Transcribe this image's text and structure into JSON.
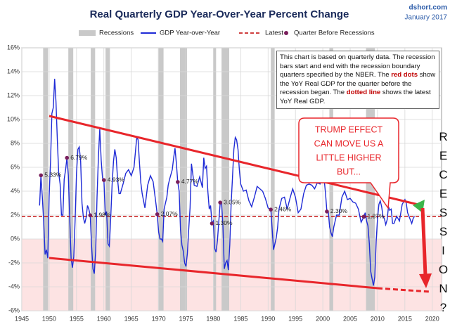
{
  "title": "Real Quarterly GDP Year-Over-Year Percent Change",
  "source": "dshort.com",
  "date": "January 2017",
  "info_box": {
    "parts": [
      "This chart is based on quarterly data. The recession bars start and end with the recession boundary quarters specified by the NBER. The ",
      "red dots",
      " show the YoY Real GDP for the quarter before the recession began. The ",
      "dotted line",
      " shows the latest YoY Real GDP."
    ]
  },
  "callout": [
    "TRUMP EFFECT",
    "CAN MOVE US A",
    "LITTLE HIGHER",
    "BUT..."
  ],
  "side_text": "RECESSION?",
  "chart_data": {
    "type": "line",
    "legend": {
      "recessions": "Recessions",
      "series": "GDP Year-over-Year",
      "latest": "Latest",
      "dots": "Quarter Before Recessions"
    },
    "xlim": [
      1945,
      2021.7
    ],
    "ylim": [
      -6,
      16
    ],
    "xticks": [
      1945,
      1950,
      1955,
      1960,
      1965,
      1970,
      1975,
      1980,
      1985,
      1990,
      1995,
      2000,
      2005,
      2010,
      2015,
      2020
    ],
    "yticks": [
      {
        "value": -6,
        "label": "-6%"
      },
      {
        "value": -4,
        "label": "-4%"
      },
      {
        "value": -2,
        "label": "-2%"
      },
      {
        "value": 0,
        "label": "0%"
      },
      {
        "value": 2,
        "label": "2%"
      },
      {
        "value": 4,
        "label": "4%"
      },
      {
        "value": 6,
        "label": "6%"
      },
      {
        "value": 8,
        "label": "8%"
      },
      {
        "value": 10,
        "label": "10%"
      },
      {
        "value": 12,
        "label": "12%"
      },
      {
        "value": 14,
        "label": "14%"
      },
      {
        "value": 16,
        "label": "16%"
      }
    ],
    "grid": true,
    "recessions": [
      [
        1948.9,
        1949.8
      ],
      [
        1953.5,
        1954.4
      ],
      [
        1957.6,
        1958.4
      ],
      [
        1960.3,
        1961.1
      ],
      [
        1969.9,
        1970.9
      ],
      [
        1973.9,
        1975.2
      ],
      [
        1980.0,
        1980.5
      ],
      [
        1981.5,
        1982.9
      ],
      [
        1990.5,
        1991.2
      ],
      [
        2001.2,
        2001.9
      ],
      [
        2007.9,
        2009.5
      ]
    ],
    "recession_color": "#c9c9c9",
    "latest": 1.9,
    "latest_color": "#c00000",
    "series": [
      {
        "name": "GDP Year-over-Year",
        "color": "#1f2bd6",
        "x": [
          1948.25,
          1948.5,
          1948.75,
          1949,
          1949.25,
          1949.5,
          1949.75,
          1950,
          1950.25,
          1950.5,
          1950.75,
          1951,
          1951.25,
          1951.5,
          1951.75,
          1952,
          1952.25,
          1952.5,
          1952.75,
          1953,
          1953.25,
          1953.5,
          1953.75,
          1954,
          1954.25,
          1954.5,
          1954.75,
          1955,
          1955.25,
          1955.5,
          1955.75,
          1956,
          1956.25,
          1956.5,
          1956.75,
          1957,
          1957.25,
          1957.5,
          1957.75,
          1958,
          1958.25,
          1958.5,
          1958.75,
          1959,
          1959.25,
          1959.5,
          1959.75,
          1960,
          1960.25,
          1960.5,
          1960.75,
          1961,
          1961.25,
          1961.5,
          1961.75,
          1962,
          1962.25,
          1962.5,
          1962.75,
          1963,
          1963.5,
          1964,
          1964.5,
          1965,
          1965.5,
          1966,
          1966.25,
          1966.5,
          1966.75,
          1967,
          1967.5,
          1968,
          1968.5,
          1969,
          1969.5,
          1969.75,
          1970,
          1970.25,
          1970.5,
          1970.75,
          1971,
          1971.25,
          1971.5,
          1971.75,
          1972,
          1972.5,
          1972.75,
          1973,
          1973.25,
          1973.5,
          1973.75,
          1974,
          1974.25,
          1974.5,
          1974.75,
          1975,
          1975.25,
          1975.5,
          1975.75,
          1976,
          1976.5,
          1977,
          1977.5,
          1978,
          1978.25,
          1978.5,
          1978.75,
          1979,
          1979.25,
          1979.5,
          1979.75,
          1980,
          1980.25,
          1980.5,
          1980.75,
          1981,
          1981.25,
          1981.5,
          1981.75,
          1982,
          1982.25,
          1982.5,
          1982.75,
          1983,
          1983.25,
          1983.5,
          1983.75,
          1984,
          1984.25,
          1984.5,
          1984.75,
          1985,
          1985.5,
          1986,
          1986.5,
          1987,
          1987.5,
          1988,
          1988.5,
          1989,
          1989.5,
          1990,
          1990.5,
          1990.75,
          1991,
          1991.25,
          1991.5,
          1991.75,
          1992,
          1992.5,
          1993,
          1993.5,
          1994,
          1994.5,
          1995,
          1995.5,
          1996,
          1996.5,
          1997,
          1997.5,
          1998,
          1998.5,
          1999,
          1999.5,
          2000,
          2000.25,
          2000.5,
          2000.75,
          2001,
          2001.25,
          2001.5,
          2001.75,
          2002,
          2002.5,
          2003,
          2003.5,
          2004,
          2004.5,
          2005,
          2005.5,
          2006,
          2006.5,
          2007,
          2007.5,
          2007.75,
          2008,
          2008.25,
          2008.5,
          2008.75,
          2009,
          2009.25,
          2009.5,
          2009.75,
          2010,
          2010.25,
          2010.5,
          2010.75,
          2011,
          2011.25,
          2011.5,
          2011.75,
          2012,
          2012.25,
          2012.5,
          2012.75,
          2013,
          2013.5,
          2014,
          2014.5,
          2015,
          2015.25,
          2015.5,
          2015.75,
          2016,
          2016.25,
          2016.5,
          2016.75
        ],
        "values": [
          2.8,
          5.3,
          3.5,
          1.5,
          -1.3,
          -0.9,
          -1.6,
          3.6,
          6.5,
          10.5,
          11,
          13.4,
          11.5,
          8.2,
          5.5,
          4.6,
          2.0,
          2.0,
          5.0,
          5.8,
          6.8,
          5.3,
          1.8,
          -1.6,
          -2.4,
          -1.5,
          1.7,
          5.5,
          7.5,
          7.7,
          6.5,
          3.0,
          1.8,
          1.3,
          1.8,
          2.8,
          2.5,
          1.98,
          -0.5,
          -2.5,
          -2.9,
          -1.0,
          3.5,
          6.9,
          9.2,
          6.6,
          5.1,
          4.93,
          2.0,
          2.3,
          -0.4,
          -0.6,
          1.8,
          4.5,
          6.5,
          7.5,
          6.8,
          5.0,
          3.8,
          3.8,
          4.6,
          5.5,
          5.8,
          5.3,
          6.0,
          8.5,
          8.3,
          6.4,
          4.7,
          3.8,
          2.6,
          4.5,
          5.3,
          4.8,
          3.0,
          2.07,
          0.6,
          0.0,
          0.0,
          -0.2,
          2.5,
          3.0,
          3.5,
          4.5,
          5.0,
          5.8,
          6.8,
          7.6,
          6.3,
          4.77,
          4.0,
          0.8,
          -0.5,
          -1.0,
          -2.0,
          -2.3,
          -1.2,
          0.8,
          2.6,
          6.3,
          4.5,
          4.4,
          5.2,
          4.3,
          6.8,
          5.9,
          6.1,
          4.0,
          2.5,
          2.8,
          1.3,
          1.5,
          -0.8,
          -1.1,
          -0.1,
          1.5,
          3.05,
          3.0,
          1.2,
          -2.5,
          -2.0,
          -1.8,
          -2.6,
          -0.5,
          2.9,
          5.2,
          7.5,
          8.5,
          8.3,
          7.5,
          5.8,
          4.6,
          4.0,
          4.1,
          3.2,
          2.7,
          3.5,
          4.4,
          4.2,
          4.0,
          3.4,
          2.6,
          2.46,
          0.8,
          -0.9,
          -0.4,
          0.1,
          1.0,
          2.5,
          3.4,
          3.5,
          2.5,
          3.4,
          4.2,
          3.5,
          2.2,
          2.5,
          3.8,
          4.5,
          4.6,
          4.5,
          4.2,
          4.7,
          4.6,
          5.3,
          5.0,
          3.8,
          2.3,
          2.3,
          1.0,
          0.5,
          0.2,
          1.0,
          2.0,
          2.0,
          3.5,
          4.0,
          3.3,
          3.4,
          3.1,
          3.0,
          2.5,
          1.4,
          1.87,
          2.2,
          1.5,
          1.1,
          -0.4,
          -2.7,
          -3.3,
          -3.9,
          -3.2,
          -0.2,
          1.7,
          2.9,
          3.2,
          2.7,
          1.9,
          1.7,
          1.2,
          1.6,
          2.7,
          2.4,
          2.5,
          1.3,
          1.3,
          1.9,
          1.5,
          2.9,
          3.3,
          3.0,
          2.2,
          1.9,
          1.6,
          1.3,
          1.7,
          1.9
        ]
      }
    ],
    "dots": {
      "color": "#7a1f5c",
      "x": [
        1948.5,
        1953.25,
        1957.5,
        1960,
        1969.75,
        1973.5,
        1979.75,
        1981.25,
        1990.5,
        2000.75,
        2007.5
      ],
      "values": [
        5.33,
        6.79,
        1.98,
        4.93,
        2.07,
        4.77,
        1.3,
        3.05,
        2.46,
        2.3,
        1.87
      ],
      "value_labels": [
        "5.33%",
        "6.79%",
        "1.98%",
        "4.93%",
        "2.07%",
        "4.77%",
        "1.30%",
        "3.05%",
        "2.46%",
        "2.30%",
        "1.87%"
      ]
    }
  }
}
